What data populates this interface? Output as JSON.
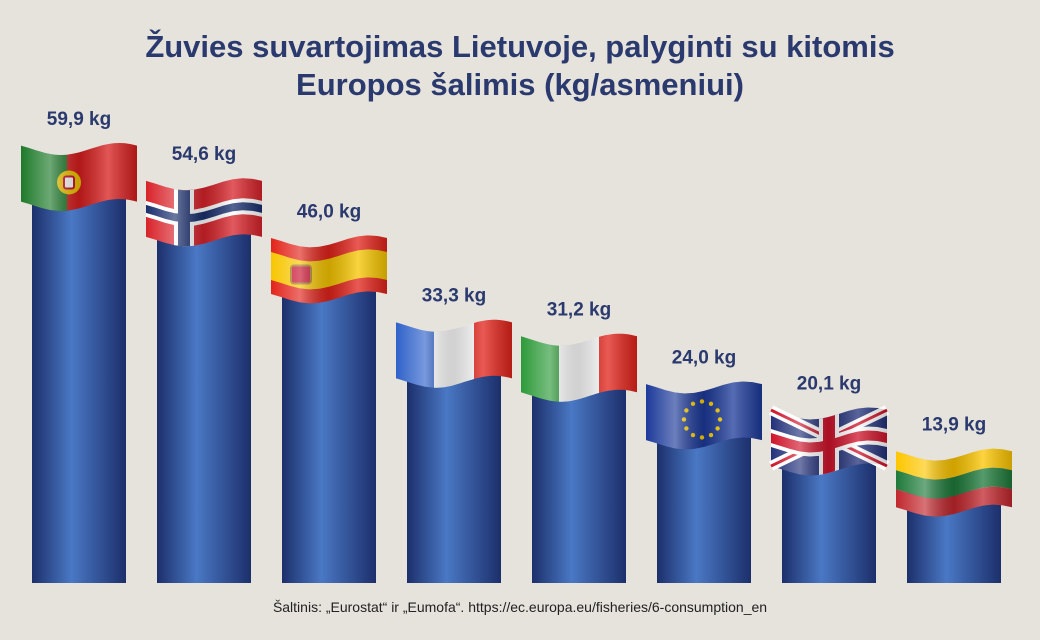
{
  "title_lines": [
    "Žuvies suvartojimas Lietuvoje, palyginti su kitomis",
    "Europos šalimis (kg/asmeniui)"
  ],
  "source_note": "Šaltinis: „Eurostat“ ir „Eumofa“. https://ec.europa.eu/fisheries/6-consumption_en",
  "colors": {
    "background": "#e6e2dc",
    "title": "#2b3a6e",
    "bar_dark": "#1c2f6b",
    "bar_light": "#4a78c4"
  },
  "chart_data": {
    "type": "bar",
    "categories": [
      "Portugalija",
      "Norvegija",
      "Ispanija",
      "Prancūzija",
      "Italija",
      "ES",
      "Jungtinė Karalystė",
      "Lietuva"
    ],
    "flags": [
      "portugal",
      "norway",
      "spain",
      "france",
      "italy",
      "eu",
      "uk",
      "lithuania"
    ],
    "values": [
      59.9,
      54.6,
      46.0,
      33.3,
      31.2,
      24.0,
      20.1,
      13.9
    ],
    "value_labels": [
      "59,9 kg",
      "54,6 kg",
      "46,0 kg",
      "33,3 kg",
      "31,2 kg",
      "24,0 kg",
      "20,1 kg",
      "13,9 kg"
    ],
    "unit": "kg/asmeniui",
    "ylim": [
      0,
      59.9
    ],
    "grid": false,
    "legend": "none"
  }
}
